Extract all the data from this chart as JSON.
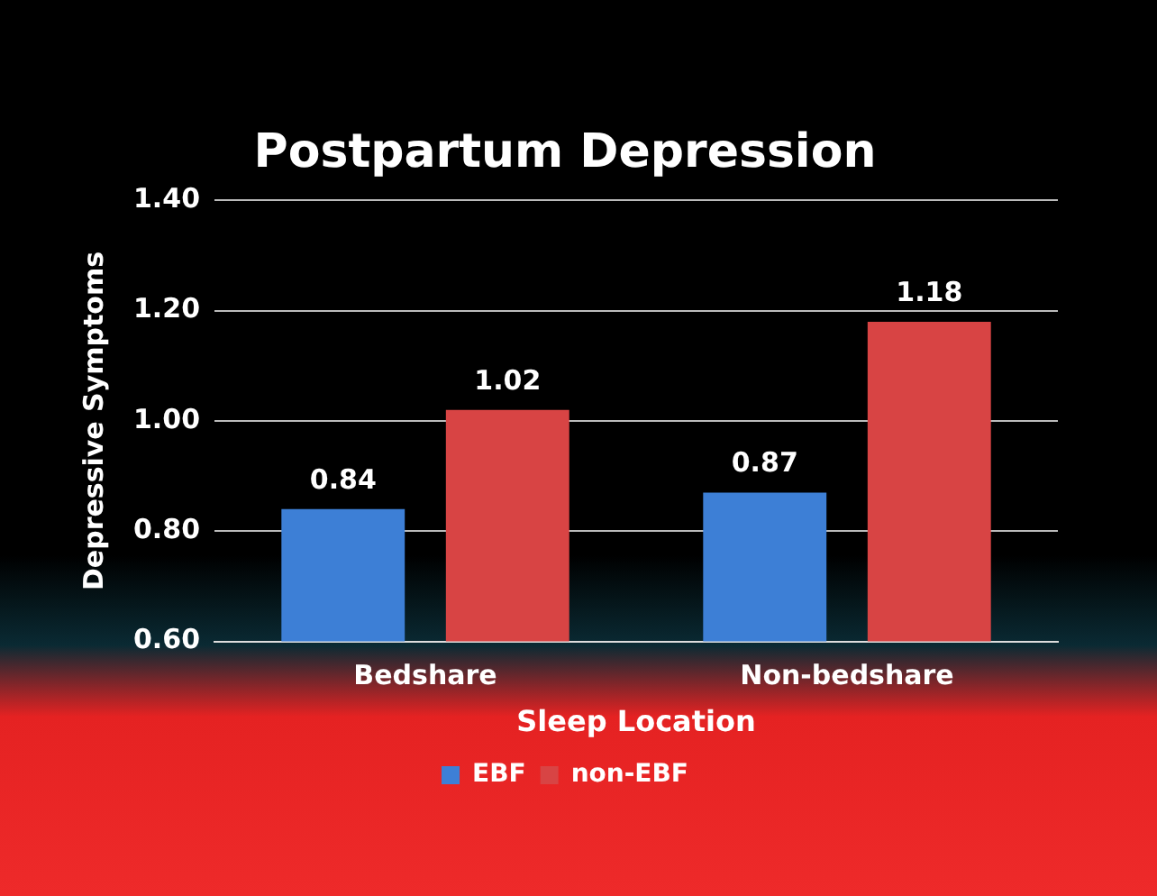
{
  "chart_data": {
    "type": "bar",
    "title": "Postpartum Depression",
    "xlabel": "Sleep Location",
    "ylabel": "Depressive Symptoms",
    "categories": [
      "Bedshare",
      "Non-bedshare"
    ],
    "series": [
      {
        "name": "EBF",
        "color": "#3d7fd6",
        "values": [
          0.84,
          0.87
        ]
      },
      {
        "name": "non-EBF",
        "color": "#d84444",
        "values": [
          1.02,
          1.18
        ]
      }
    ],
    "ylim": [
      0.6,
      1.4
    ],
    "yticks": [
      {
        "value": 0.6,
        "label": "0.60"
      },
      {
        "value": 0.8,
        "label": "0.80"
      },
      {
        "value": 1.0,
        "label": "1.00"
      },
      {
        "value": 1.2,
        "label": "1.20"
      },
      {
        "value": 1.4,
        "label": "1.40"
      }
    ],
    "grid": "y",
    "legend": "bottom",
    "data_labels": true
  }
}
